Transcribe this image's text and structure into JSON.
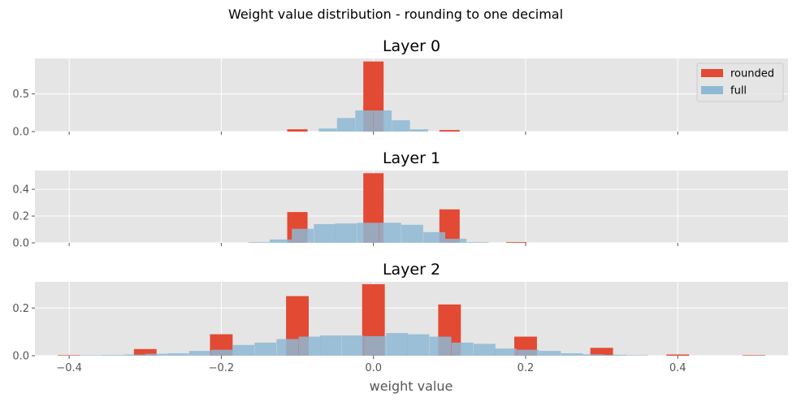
{
  "suptitle": "Weight value distribution - rounding to one decimal",
  "colors": {
    "background": "#e5e5e5",
    "grid": "#ffffff",
    "rounded": "#e24a33",
    "full": "#8eb9d4"
  },
  "chart_data": {
    "type": "bar",
    "xlabel": "weight value",
    "xlim": [
      -0.445,
      0.545
    ],
    "xticks": [
      -0.4,
      -0.2,
      0.0,
      0.2,
      0.4
    ],
    "xtick_labels": [
      "−0.4",
      "−0.2",
      "0.0",
      "0.2",
      "0.4"
    ],
    "legend": {
      "placement": "top-right",
      "entries": [
        "rounded",
        "full"
      ]
    },
    "grid": true,
    "panels": [
      {
        "title": "Layer 0",
        "ylim": [
          0,
          0.97
        ],
        "yticks": [
          0.0,
          0.5
        ],
        "ytick_labels": [
          "0.0",
          "0.5"
        ],
        "series": [
          {
            "name": "rounded",
            "bin_width": 0.0267,
            "bars": [
              [
                -0.1,
                0.03
              ],
              [
                0.0,
                0.93
              ],
              [
                0.1,
                0.02
              ]
            ]
          },
          {
            "name": "full",
            "bin_width": 0.0238,
            "bars": [
              [
                -0.06,
                0.04
              ],
              [
                -0.036,
                0.18
              ],
              [
                -0.012,
                0.28
              ],
              [
                0.012,
                0.28
              ],
              [
                0.036,
                0.15
              ],
              [
                0.06,
                0.03
              ]
            ]
          }
        ]
      },
      {
        "title": "Layer 1",
        "ylim": [
          0,
          0.54
        ],
        "yticks": [
          0.0,
          0.2,
          0.4
        ],
        "ytick_labels": [
          "0.0",
          "0.2",
          "0.4"
        ],
        "series": [
          {
            "name": "rounded",
            "bin_width": 0.0267,
            "bars": [
              [
                -0.1,
                0.23
              ],
              [
                0.0,
                0.52
              ],
              [
                0.1,
                0.25
              ],
              [
                0.188,
                0.005
              ]
            ]
          },
          {
            "name": "full",
            "bin_width": 0.0287,
            "bars": [
              [
                -0.15,
                0.005
              ],
              [
                -0.122,
                0.025
              ],
              [
                -0.093,
                0.105
              ],
              [
                -0.064,
                0.14
              ],
              [
                -0.036,
                0.145
              ],
              [
                -0.007,
                0.15
              ],
              [
                0.022,
                0.15
              ],
              [
                0.051,
                0.135
              ],
              [
                0.08,
                0.08
              ],
              [
                0.108,
                0.03
              ],
              [
                0.137,
                0.005
              ]
            ]
          }
        ]
      },
      {
        "title": "Layer 2",
        "ylim": [
          0,
          0.31
        ],
        "yticks": [
          0.0,
          0.2
        ],
        "ytick_labels": [
          "0.0",
          "0.2"
        ],
        "series": [
          {
            "name": "rounded",
            "bin_width": 0.0298,
            "bars": [
              [
                -0.4,
                0.002
              ],
              [
                -0.3,
                0.028
              ],
              [
                -0.2,
                0.09
              ],
              [
                -0.1,
                0.25
              ],
              [
                0.0,
                0.3
              ],
              [
                0.1,
                0.215
              ],
              [
                0.2,
                0.08
              ],
              [
                0.3,
                0.033
              ],
              [
                0.4,
                0.005
              ],
              [
                0.5,
                0.002
              ]
            ]
          },
          {
            "name": "full",
            "bin_width": 0.0287,
            "bars": [
              [
                -0.372,
                0.002
              ],
              [
                -0.343,
                0.003
              ],
              [
                -0.314,
                0.005
              ],
              [
                -0.286,
                0.008
              ],
              [
                -0.257,
                0.01
              ],
              [
                -0.228,
                0.02
              ],
              [
                -0.199,
                0.025
              ],
              [
                -0.171,
                0.045
              ],
              [
                -0.142,
                0.055
              ],
              [
                -0.113,
                0.07
              ],
              [
                -0.084,
                0.08
              ],
              [
                -0.056,
                0.085
              ],
              [
                -0.027,
                0.085
              ],
              [
                0.002,
                0.082
              ],
              [
                0.031,
                0.095
              ],
              [
                0.059,
                0.09
              ],
              [
                0.088,
                0.08
              ],
              [
                0.117,
                0.055
              ],
              [
                0.146,
                0.05
              ],
              [
                0.174,
                0.03
              ],
              [
                0.203,
                0.025
              ],
              [
                0.232,
                0.02
              ],
              [
                0.261,
                0.01
              ],
              [
                0.289,
                0.006
              ],
              [
                0.318,
                0.004
              ],
              [
                0.347,
                0.002
              ]
            ]
          }
        ]
      }
    ]
  }
}
